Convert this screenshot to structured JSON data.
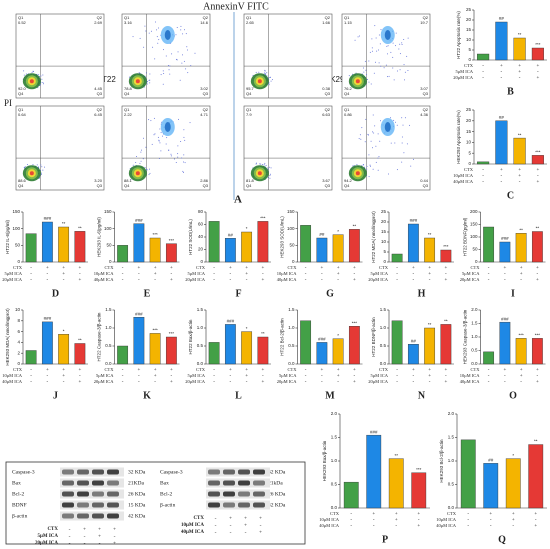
{
  "flow": {
    "title": "AnnexinV FITC",
    "axis_label": "PI",
    "label": "A",
    "quadrants": [
      "Q1",
      "Q2",
      "Q4",
      "Q3"
    ],
    "groups": [
      {
        "name": "HT22",
        "panels": [
          [
            "0.52",
            "2.69",
            "92.0",
            "4.45"
          ],
          [
            "3.16",
            "14.6",
            "78.8",
            "3.02"
          ],
          [
            "0.64",
            "6.45",
            "88.6",
            "3.20"
          ],
          [
            "2.22",
            "4.71",
            "88.1",
            "2.86"
          ]
        ]
      },
      {
        "name": "HEK293",
        "panels": [
          [
            "2.65",
            "1.66",
            "95.7",
            "0.38"
          ],
          [
            "1.15",
            "19.7",
            "76.2",
            "3.07"
          ],
          [
            "7.9",
            "6.63",
            "81.8",
            "3.67"
          ],
          [
            "0.86",
            "4.36",
            "94.2",
            "0.44"
          ]
        ]
      }
    ]
  },
  "bar_colors": [
    "#43a047",
    "#1e88e5",
    "#f4b400",
    "#e53935"
  ],
  "chart_data": [
    {
      "type": "bar",
      "label": "B",
      "ylabel": "HT22 Apoptosis rate(%)",
      "values": [
        3,
        19,
        11,
        6
      ],
      "ylim": [
        0,
        25
      ],
      "yticks": [
        0,
        5,
        10,
        15,
        20,
        25
      ],
      "annotations": [
        null,
        "##",
        "**",
        "***"
      ],
      "treatments": [
        {
          "name": "CTX",
          "marks": [
            "-",
            "+",
            "+",
            "+"
          ]
        },
        {
          "name": "5μM ICA",
          "marks": [
            "-",
            "-",
            "+",
            "-"
          ]
        },
        {
          "name": "20μM ICA",
          "marks": [
            "-",
            "-",
            "-",
            "+"
          ]
        }
      ]
    },
    {
      "type": "bar",
      "label": "C",
      "ylabel": "HEK293 Apoptosis rate(%)",
      "values": [
        1,
        20,
        12,
        4
      ],
      "ylim": [
        0,
        25
      ],
      "yticks": [
        0,
        5,
        10,
        15,
        20,
        25
      ],
      "annotations": [
        null,
        "##",
        "**",
        "***"
      ],
      "treatments": [
        {
          "name": "CTX",
          "marks": [
            "-",
            "+",
            "+",
            "+"
          ]
        },
        {
          "name": "10μM ICA",
          "marks": [
            "-",
            "-",
            "+",
            "-"
          ]
        },
        {
          "name": "40μM ICA",
          "marks": [
            "-",
            "-",
            "-",
            "+"
          ]
        }
      ]
    },
    {
      "type": "bar",
      "label": "D",
      "ylabel": "HT22 IL-6(pg/ml)",
      "values": [
        85,
        120,
        105,
        92
      ],
      "ylim": [
        0,
        150
      ],
      "yticks": [
        0,
        50,
        100,
        150
      ],
      "annotations": [
        null,
        "###",
        "**",
        "**"
      ],
      "treatments": [
        {
          "name": "CTX",
          "marks": [
            "-",
            "+",
            "+",
            "+"
          ]
        },
        {
          "name": "5μM ICA",
          "marks": [
            "-",
            "-",
            "+",
            "-"
          ]
        },
        {
          "name": "20μM ICA",
          "marks": [
            "-",
            "-",
            "-",
            "+"
          ]
        }
      ]
    },
    {
      "type": "bar",
      "label": "E",
      "ylabel": "HEK293 IL-6(pg/ml)",
      "values": [
        50,
        115,
        72,
        55
      ],
      "ylim": [
        0,
        150
      ],
      "yticks": [
        0,
        50,
        100,
        150
      ],
      "annotations": [
        null,
        "###",
        "***",
        "***"
      ],
      "treatments": [
        {
          "name": "CTX",
          "marks": [
            "-",
            "+",
            "+",
            "+"
          ]
        },
        {
          "name": "10μM ICA",
          "marks": [
            "-",
            "-",
            "+",
            "-"
          ]
        },
        {
          "name": "40μM ICA",
          "marks": [
            "-",
            "-",
            "-",
            "+"
          ]
        }
      ]
    },
    {
      "type": "bar",
      "label": "F",
      "ylabel": "HT22 SOD(U/mL)",
      "values": [
        65,
        38,
        48,
        65
      ],
      "ylim": [
        0,
        80
      ],
      "yticks": [
        0,
        20,
        40,
        60,
        80
      ],
      "annotations": [
        null,
        "##",
        "*",
        "***"
      ],
      "treatments": [
        {
          "name": "CTX",
          "marks": [
            "-",
            "+",
            "+",
            "+"
          ]
        },
        {
          "name": "5μM ICA",
          "marks": [
            "-",
            "-",
            "+",
            "-"
          ]
        },
        {
          "name": "20μM ICA",
          "marks": [
            "-",
            "-",
            "-",
            "+"
          ]
        }
      ]
    },
    {
      "type": "bar",
      "label": "G",
      "ylabel": "HEK293 SOD(U/mL)",
      "values": [
        110,
        72,
        82,
        98
      ],
      "ylim": [
        0,
        150
      ],
      "yticks": [
        0,
        50,
        100,
        150
      ],
      "annotations": [
        null,
        "##",
        "*",
        "**"
      ],
      "treatments": [
        {
          "name": "CTX",
          "marks": [
            "-",
            "+",
            "+",
            "+"
          ]
        },
        {
          "name": "10μM ICA",
          "marks": [
            "-",
            "-",
            "+",
            "-"
          ]
        },
        {
          "name": "40μM ICA",
          "marks": [
            "-",
            "-",
            "-",
            "+"
          ]
        }
      ]
    },
    {
      "type": "bar",
      "label": "H",
      "ylabel": "HT22 MDA( nmol/mgprot)",
      "values": [
        4,
        19,
        12,
        6
      ],
      "ylim": [
        0,
        25
      ],
      "yticks": [
        0,
        5,
        10,
        15,
        20,
        25
      ],
      "annotations": [
        null,
        "###",
        "**",
        "***"
      ],
      "treatments": [
        {
          "name": "CTX",
          "marks": [
            "-",
            "+",
            "+",
            "+"
          ]
        },
        {
          "name": "5μM ICA",
          "marks": [
            "-",
            "-",
            "+",
            "-"
          ]
        },
        {
          "name": "20μM ICA",
          "marks": [
            "-",
            "-",
            "-",
            "+"
          ]
        }
      ]
    },
    {
      "type": "bar",
      "label": "I",
      "ylabel": "HT22 BDNF(pg/ml)",
      "values": [
        140,
        80,
        115,
        122
      ],
      "ylim": [
        0,
        200
      ],
      "yticks": [
        0,
        50,
        100,
        150,
        200
      ],
      "annotations": [
        null,
        "###",
        "**",
        "**"
      ],
      "treatments": [
        {
          "name": "CTX",
          "marks": [
            "-",
            "+",
            "+",
            "+"
          ]
        },
        {
          "name": "5μM ICA",
          "marks": [
            "-",
            "-",
            "+",
            "-"
          ]
        },
        {
          "name": "20μM ICA",
          "marks": [
            "-",
            "-",
            "-",
            "+"
          ]
        }
      ]
    },
    {
      "type": "bar",
      "label": "J",
      "ylabel": "HEK293 MDA( nmol/mgprot)",
      "values": [
        2.5,
        7.8,
        5.5,
        3.8
      ],
      "ylim": [
        0,
        10
      ],
      "yticks": [
        0,
        2,
        4,
        6,
        8,
        10
      ],
      "annotations": [
        null,
        "###",
        "*",
        "**"
      ],
      "treatments": [
        {
          "name": "CTX",
          "marks": [
            "-",
            "+",
            "+",
            "+"
          ]
        },
        {
          "name": "10μM ICA",
          "marks": [
            "-",
            "-",
            "+",
            "-"
          ]
        },
        {
          "name": "40μM ICA",
          "marks": [
            "-",
            "-",
            "-",
            "+"
          ]
        }
      ]
    },
    {
      "type": "bar",
      "label": "K",
      "ylabel": "HT22 Caspase-3/β-actin",
      "values": [
        0.5,
        1.3,
        0.85,
        0.75
      ],
      "ylim": [
        0,
        1.5
      ],
      "yticks": [
        {
          "value": 0,
          "label": "0.0"
        },
        0.5,
        {
          "value": 1,
          "label": "1.0"
        },
        1.5
      ],
      "annotations": [
        null,
        "###",
        "***",
        "***"
      ],
      "treatments": [
        {
          "name": "CTX",
          "marks": [
            "-",
            "+",
            "+",
            "+"
          ]
        },
        {
          "name": "5μM ICA",
          "marks": [
            "-",
            "-",
            "+",
            "-"
          ]
        },
        {
          "name": "20μM ICA",
          "marks": [
            "-",
            "-",
            "-",
            "+"
          ]
        }
      ]
    },
    {
      "type": "bar",
      "label": "L",
      "ylabel": "HT22 Bax/β-actin",
      "values": [
        0.6,
        1.1,
        0.9,
        0.75
      ],
      "ylim": [
        0,
        1.5
      ],
      "yticks": [
        {
          "value": 0,
          "label": "0.0"
        },
        0.5,
        {
          "value": 1,
          "label": "1.0"
        },
        1.5
      ],
      "annotations": [
        null,
        "###",
        "*",
        "**"
      ],
      "treatments": [
        {
          "name": "CTX",
          "marks": [
            "-",
            "+",
            "+",
            "+"
          ]
        },
        {
          "name": "5μM ICA",
          "marks": [
            "-",
            "-",
            "+",
            "-"
          ]
        },
        {
          "name": "20μM ICA",
          "marks": [
            "-",
            "-",
            "-",
            "+"
          ]
        }
      ]
    },
    {
      "type": "bar",
      "label": "M",
      "ylabel": "HT22 Bcl-2/β-actin",
      "values": [
        1.2,
        0.6,
        0.7,
        1.05
      ],
      "ylim": [
        0,
        1.5
      ],
      "yticks": [
        {
          "value": 0,
          "label": "0.0"
        },
        0.5,
        {
          "value": 1,
          "label": "1.0"
        },
        1.5
      ],
      "annotations": [
        null,
        "###",
        "*",
        "***"
      ],
      "treatments": [
        {
          "name": "CTX",
          "marks": [
            "-",
            "+",
            "+",
            "+"
          ]
        },
        {
          "name": "5μM ICA",
          "marks": [
            "-",
            "-",
            "+",
            "-"
          ]
        },
        {
          "name": "20μM ICA",
          "marks": [
            "-",
            "-",
            "-",
            "+"
          ]
        }
      ]
    },
    {
      "type": "bar",
      "label": "N",
      "ylabel": "HT22 BDNF/β-actin",
      "values": [
        1.2,
        0.55,
        1.0,
        1.1
      ],
      "ylim": [
        0,
        1.5
      ],
      "yticks": [
        {
          "value": 0,
          "label": "0.0"
        },
        0.5,
        {
          "value": 1,
          "label": "1.0"
        },
        1.5
      ],
      "annotations": [
        null,
        "##",
        "**",
        "**"
      ],
      "treatments": [
        {
          "name": "CTX",
          "marks": [
            "-",
            "+",
            "+",
            "+"
          ]
        },
        {
          "name": "5μM ICA",
          "marks": [
            "-",
            "-",
            "+",
            "-"
          ]
        },
        {
          "name": "20μM ICA",
          "marks": [
            "-",
            "-",
            "-",
            "+"
          ]
        }
      ]
    },
    {
      "type": "bar",
      "label": "O",
      "ylabel": "HEK293 Caspase-3/β-actin",
      "values": [
        0.45,
        1.55,
        0.95,
        0.95
      ],
      "ylim": [
        0,
        2
      ],
      "yticks": [
        {
          "value": 0,
          "label": "0.0"
        },
        0.5,
        {
          "value": 1,
          "label": "1.0"
        },
        1.5,
        {
          "value": 2,
          "label": "2.0"
        }
      ],
      "annotations": [
        null,
        "###",
        "***",
        "***"
      ],
      "treatments": [
        {
          "name": "CTX",
          "marks": [
            "-",
            "+",
            "+",
            "+"
          ]
        },
        {
          "name": "10μM ICA",
          "marks": [
            "-",
            "-",
            "+",
            "-"
          ]
        },
        {
          "name": "40μM ICA",
          "marks": [
            "-",
            "-",
            "-",
            "+"
          ]
        }
      ]
    },
    {
      "type": "bar",
      "label": "P",
      "ylabel": "HEK293 Bax/β-actin",
      "values": [
        0.55,
        1.55,
        1.05,
        0.75
      ],
      "ylim": [
        0,
        2
      ],
      "yticks": [
        {
          "value": 0,
          "label": "0.0"
        },
        0.5,
        {
          "value": 1,
          "label": "1.0"
        },
        1.5,
        {
          "value": 2,
          "label": "2.0"
        }
      ],
      "annotations": [
        null,
        "###",
        "**",
        "***"
      ],
      "treatments": [
        {
          "name": "CTX",
          "marks": [
            "-",
            "+",
            "+",
            "+"
          ]
        },
        {
          "name": "10μM ICA",
          "marks": [
            "-",
            "-",
            "+",
            "-"
          ]
        },
        {
          "name": "40μM ICA",
          "marks": [
            "-",
            "-",
            "-",
            "+"
          ]
        }
      ]
    },
    {
      "type": "bar",
      "label": "Q",
      "ylabel": "HEK293 Bcl-2/β-actin",
      "values": [
        1.45,
        0.95,
        1.05,
        1.35
      ],
      "ylim": [
        0,
        2
      ],
      "yticks": [
        {
          "value": 0,
          "label": "0.0"
        },
        0.5,
        {
          "value": 1,
          "label": "1.0"
        },
        1.5,
        {
          "value": 2,
          "label": "2.0"
        }
      ],
      "annotations": [
        null,
        "##",
        "*",
        "**"
      ],
      "treatments": [
        {
          "name": "CTX",
          "marks": [
            "-",
            "+",
            "+",
            "+"
          ]
        },
        {
          "name": "10μM ICA",
          "marks": [
            "-",
            "-",
            "+",
            "-"
          ]
        },
        {
          "name": "40μM ICA",
          "marks": [
            "-",
            "-",
            "-",
            "+"
          ]
        }
      ]
    }
  ],
  "blots": [
    {
      "proteins": [
        [
          "Caspase-3",
          "32 KDa"
        ],
        [
          "Bax",
          "21KDa"
        ],
        [
          "Bcl-2",
          "26 KDa"
        ],
        [
          "BDNF",
          "15 KDa"
        ],
        [
          "β-actin",
          "42 KDa"
        ]
      ],
      "treatments": [
        {
          "name": "CTX",
          "marks": [
            "-",
            "+",
            "+",
            "+"
          ]
        },
        {
          "name": "5μM ICA",
          "marks": [
            "-",
            "-",
            "+",
            "-"
          ]
        },
        {
          "name": "20μM ICA",
          "marks": [
            "-",
            "-",
            "-",
            "+"
          ]
        }
      ]
    },
    {
      "proteins": [
        [
          "Caspase-3",
          "32 KDa"
        ],
        [
          "Bax",
          "21kDa"
        ],
        [
          "Bcl-2",
          "26 KDa"
        ],
        [
          "β-actin",
          "42 KDa"
        ]
      ],
      "treatments": [
        {
          "name": "CTX",
          "marks": [
            "-",
            "+",
            "+",
            "+"
          ]
        },
        {
          "name": "10μM ICA",
          "marks": [
            "-",
            "-",
            "+",
            "-"
          ]
        },
        {
          "name": "40μM ICA",
          "marks": [
            "-",
            "-",
            "-",
            "+"
          ]
        }
      ]
    }
  ]
}
